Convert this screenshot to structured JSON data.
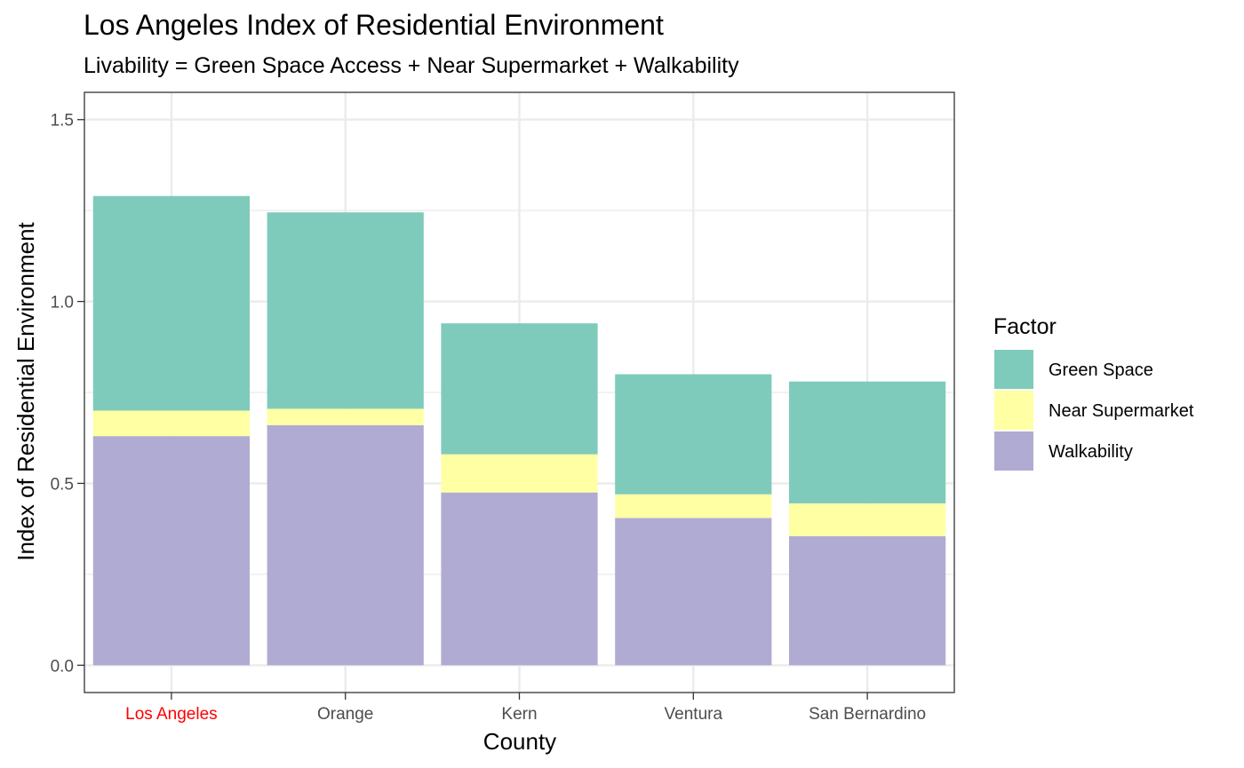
{
  "chart_data": {
    "type": "bar",
    "stacked": true,
    "title": "Los Angeles Index of Residential Environment",
    "subtitle": "Livability = Green Space Access + Near Supermarket + Walkability",
    "xlabel": "County",
    "ylabel": "Index of Residential Environment",
    "categories": [
      "Los Angeles",
      "Orange",
      "Kern",
      "Ventura",
      "San Bernardino"
    ],
    "highlight_category": "Los Angeles",
    "highlight_color": "#ff0000",
    "series": [
      {
        "name": "Walkability",
        "color": "#b0abd2",
        "values": [
          0.63,
          0.66,
          0.475,
          0.405,
          0.355
        ]
      },
      {
        "name": "Near Supermarket",
        "color": "#ffffa4",
        "values": [
          0.07,
          0.045,
          0.105,
          0.065,
          0.09
        ]
      },
      {
        "name": "Green Space",
        "color": "#7fcbbb",
        "values": [
          0.59,
          0.54,
          0.36,
          0.33,
          0.335
        ]
      }
    ],
    "ylim": [
      -0.075,
      1.575
    ],
    "yticks": [
      "0.0",
      "0.5",
      "1.0",
      "1.5"
    ],
    "grid": true,
    "legend": {
      "title": "Factor",
      "position": "right",
      "items": [
        "Green Space",
        "Near Supermarket",
        "Walkability"
      ]
    }
  }
}
